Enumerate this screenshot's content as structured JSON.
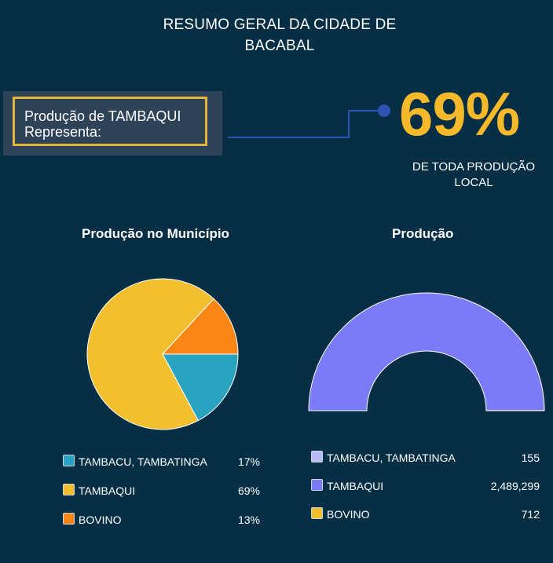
{
  "header": {
    "title_line1": "RESUMO GERAL DA CIDADE DE",
    "title_line2": "BACABAL"
  },
  "callout": {
    "line1": "Produção de TAMBAQUI",
    "line2": "Representa:"
  },
  "highlight": {
    "value": "69%",
    "caption_line1": "DE TODA PRODUÇÃO",
    "caption_line2": "LOCAL",
    "color": "#f6b929"
  },
  "chart_data": [
    {
      "type": "pie",
      "title": "Produção no Município",
      "categories": [
        "TAMBACU, TAMBATINGA",
        "TAMBAQUI",
        "BOVINO"
      ],
      "values": [
        17,
        69,
        13
      ],
      "value_labels": [
        "17%",
        "69%",
        "13%"
      ],
      "colors": [
        "#2aa3c0",
        "#f2bf2e",
        "#f98615"
      ]
    },
    {
      "type": "pie",
      "subtype": "half-donut",
      "title": "Produção",
      "categories": [
        "TAMBACU, TAMBATINGA",
        "TAMBAQUI",
        "BOVINO"
      ],
      "values": [
        155,
        2489299,
        712
      ],
      "value_labels": [
        "155",
        "2,489,299",
        "712"
      ],
      "colors": [
        "#b8baf6",
        "#7b7bf8",
        "#f2bf2e"
      ]
    }
  ]
}
